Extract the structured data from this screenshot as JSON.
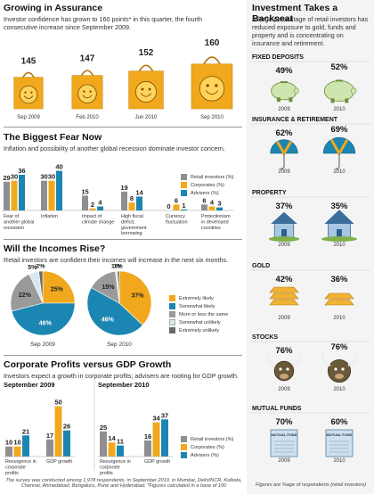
{
  "colors": {
    "retail": "#8f8f91",
    "corporates": "#f2a81d",
    "advisers": "#1b86b1",
    "bag": "#f2a81d",
    "somewhat_unlikely": "#d9e8f0",
    "extremely_unlikely": "#6a6a6a",
    "more_less": "#9a9a9a"
  },
  "section1": {
    "title": "Growing in Assurance",
    "subtitle": "Investor confidence has grown to 160 points* in this quarter, the fourth consecutive increase since September 2009."
  },
  "section2": {
    "title": "The Biggest Fear Now",
    "subtitle": "Inflation and possibility of another global recession dominate investor concern."
  },
  "section3": {
    "title": "Will the Incomes Rise?",
    "subtitle": "Retail investors are confident their incomes will increase in the next six months."
  },
  "section4": {
    "title": "Corporate Profits versus GDP Growth",
    "subtitle": "Investors expect a growth in corporate profits; advisers are rooting for GDP growth."
  },
  "right": {
    "title": "Investment Takes a Backseat",
    "subtitle": "A large percentage of retail investors has reduced exposure to gold, funds and property and is concentrating on insurance and retirement.",
    "footnote": "Figures are %age of respondents (retail investors)"
  },
  "footnote": "The survey was conducted among 1,978 respondents, in September 2010, in Mumbai, Delhi/NCR, Kolkata, Chennai, Ahmedabad, Bengaluru, Pune and Hyderabad. *Figures calculated in a base of 100",
  "chart_data": [
    {
      "type": "bar",
      "id": "confidence",
      "categories": [
        "Sep 2009",
        "Feb 2010",
        "Jun 2010",
        "Sep 2010"
      ],
      "values": [
        145,
        147,
        152,
        160
      ]
    },
    {
      "type": "bar",
      "id": "fears",
      "categories": [
        "Fear of another global recession",
        "Inflation",
        "Impact of climate change",
        "High fiscal deficit, government borrowing",
        "Currency fluctuation",
        "Protectionism in developed countries"
      ],
      "series": [
        {
          "name": "Retail investors (%)",
          "values": [
            29,
            30,
            15,
            19,
            0,
            6
          ]
        },
        {
          "name": "Corporates (%)",
          "values": [
            30,
            30,
            2,
            8,
            6,
            4
          ]
        },
        {
          "name": "Advisers (%)",
          "values": [
            36,
            40,
            4,
            14,
            1,
            3
          ]
        }
      ],
      "ylim": [
        0,
        45
      ]
    },
    {
      "type": "pie",
      "id": "incomes",
      "legend": [
        "Extremely likely",
        "Somewhat likely",
        "More or less the same",
        "Somewhat unlikely",
        "Extremely unlikely"
      ],
      "pies": [
        {
          "label": "Sep 2009",
          "values": [
            25,
            46,
            22,
            5,
            2
          ],
          "labels": [
            "25%",
            "46%",
            "22%",
            "5%",
            "2%"
          ]
        },
        {
          "label": "Sep 2010",
          "values": [
            37,
            46,
            15,
            1,
            1
          ],
          "labels": [
            "37%",
            "46%",
            "15%",
            "1%",
            "1%"
          ]
        }
      ]
    },
    {
      "type": "bar",
      "id": "profits",
      "groups": [
        {
          "label": "September 2009",
          "categories": [
            "Resurgence in corporate profits",
            "GDP growth"
          ],
          "series": [
            [
              10,
              17
            ],
            [
              10,
              50
            ],
            [
              21,
              26
            ]
          ]
        },
        {
          "label": "September 2010",
          "categories": [
            "Resurgence in corporate profits",
            "GDP growth"
          ],
          "series": [
            [
              25,
              16
            ],
            [
              14,
              34
            ],
            [
              11,
              37
            ]
          ]
        }
      ],
      "series_names": [
        "Retail investors (%)",
        "Corporates (%)",
        "Advisers (%)"
      ],
      "ylim": [
        0,
        55
      ]
    },
    {
      "type": "table",
      "id": "backseat",
      "years": [
        "2009",
        "2010"
      ],
      "rows": [
        {
          "name": "FIXED DEPOSITS",
          "values": [
            "49%",
            "52%"
          ],
          "icon": "piggy-bank-icon"
        },
        {
          "name": "INSURANCE & RETIREMENT",
          "values": [
            "62%",
            "69%"
          ],
          "icon": "umbrella-icon"
        },
        {
          "name": "PROPERTY",
          "values": [
            "37%",
            "35%"
          ],
          "icon": "house-icon"
        },
        {
          "name": "GOLD",
          "values": [
            "42%",
            "36%"
          ],
          "icon": "gold-bar-icon"
        },
        {
          "name": "STOCKS",
          "values": [
            "76%",
            "76%"
          ],
          "icon": "bull-icon"
        },
        {
          "name": "MUTUAL FUNDS",
          "values": [
            "70%",
            "60%"
          ],
          "icon": "fund-document-icon"
        }
      ],
      "doc_label": "MUTUAL FUND"
    }
  ]
}
